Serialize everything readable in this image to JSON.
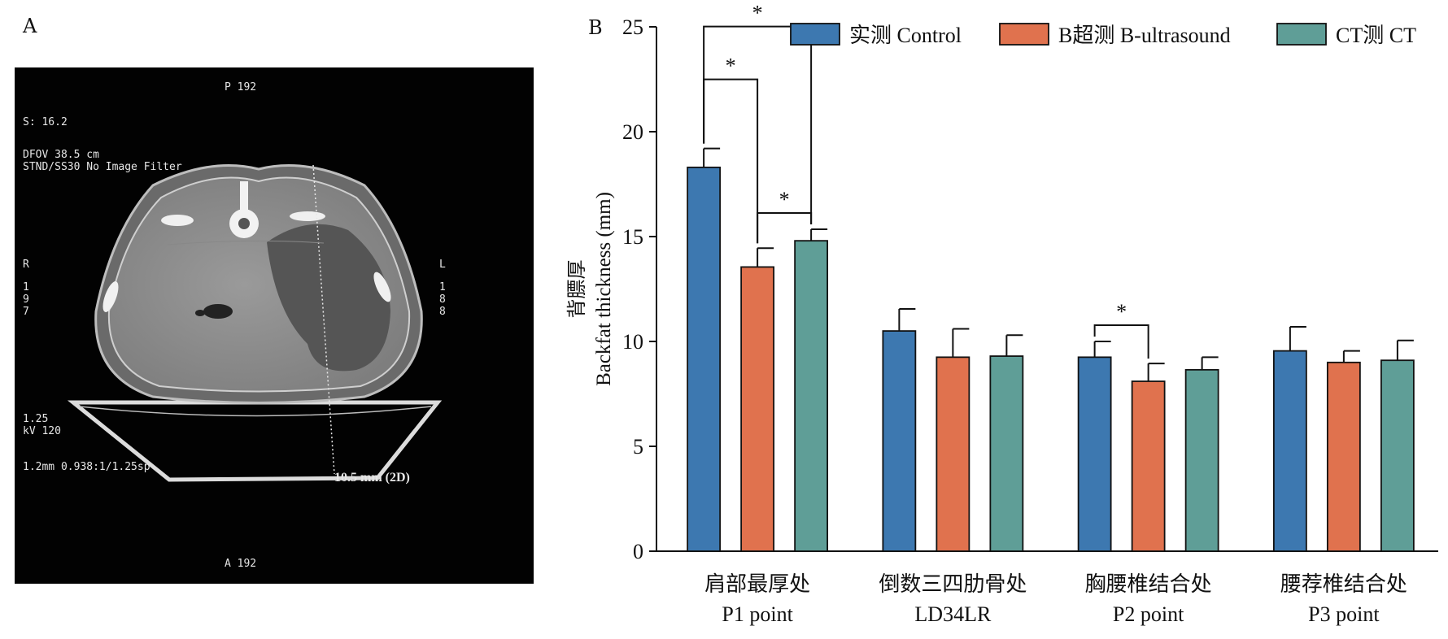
{
  "panel_a": {
    "label": "A",
    "ct_overlay": {
      "top": "P 192",
      "bottom": "A 192",
      "s_value": "S: 16.2",
      "dfov": "DFOV 38.5 cm",
      "filter": "STND/SS30 No Image Filter",
      "left_letter": "R",
      "left_number": [
        "1",
        "9",
        "7"
      ],
      "right_letter": "L",
      "right_number": [
        "1",
        "8",
        "8"
      ],
      "thickness": "1.25",
      "kv": "kV 120",
      "params": "1.2mm 0.938:1/1.25sp",
      "measurement": "10.5 mm (2D)"
    }
  },
  "panel_b": {
    "label": "B"
  },
  "chart_data": {
    "type": "bar",
    "categories": [
      {
        "zh": "肩部最厚处",
        "en": "P1 point"
      },
      {
        "zh": "倒数三四肋骨处",
        "en": "LD34LR"
      },
      {
        "zh": "胸腰椎结合处",
        "en": "P2 point"
      },
      {
        "zh": "腰荐椎结合处",
        "en": "P3 point"
      }
    ],
    "series": [
      {
        "name": "实测 Control",
        "color": "#3d78b0",
        "values": [
          18.3,
          10.5,
          9.25,
          9.55
        ],
        "errors": [
          0.9,
          1.05,
          0.75,
          1.15
        ]
      },
      {
        "name": "B超测 B-ultrasound",
        "color": "#e0724e",
        "values": [
          13.55,
          9.25,
          8.1,
          9.0
        ],
        "errors": [
          0.9,
          1.35,
          0.85,
          0.55
        ]
      },
      {
        "name": "CT测 CT",
        "color": "#5f9e97",
        "values": [
          14.8,
          9.3,
          8.65,
          9.1
        ],
        "errors": [
          0.55,
          1.0,
          0.6,
          0.95
        ]
      }
    ],
    "ylabel_zh": "背膘厚",
    "ylabel_en": "Backfat thickness (mm)",
    "xlabel": "",
    "ylim": [
      0,
      25
    ],
    "yticks": [
      0,
      5,
      10,
      15,
      20,
      25
    ],
    "legend_position": "top-right",
    "significance": [
      {
        "category": 0,
        "from_series": 0,
        "to_series": 2,
        "label": "*",
        "level": 2
      },
      {
        "category": 0,
        "from_series": 0,
        "to_series": 1,
        "label": "*",
        "level": 1
      },
      {
        "category": 0,
        "from_series": 1,
        "to_series": 2,
        "label": "*",
        "level": 0
      },
      {
        "category": 2,
        "from_series": 0,
        "to_series": 1,
        "label": "*",
        "level": 0
      }
    ]
  }
}
